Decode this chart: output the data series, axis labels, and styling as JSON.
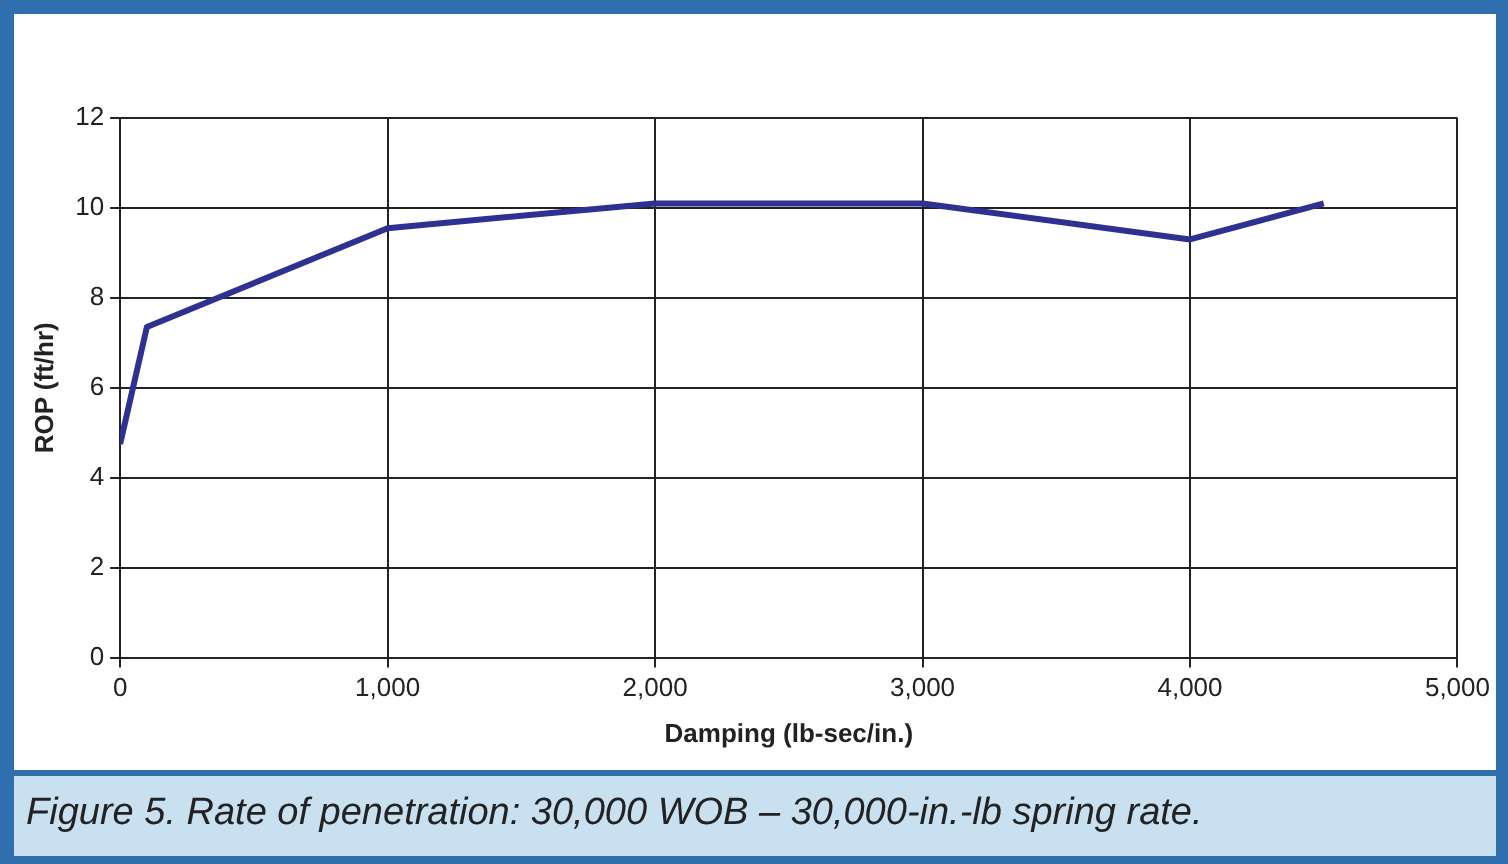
{
  "chart_data": {
    "type": "line",
    "xlabel": "Damping (lb-sec/in.)",
    "ylabel": "ROP (ft/hr)",
    "x": [
      0,
      100,
      1000,
      2000,
      3000,
      4000,
      4500
    ],
    "series": [
      {
        "color": "#2e3192",
        "values": [
          4.75,
          7.35,
          9.55,
          10.1,
          10.1,
          9.3,
          10.1
        ]
      }
    ],
    "xlim": [
      0,
      5000
    ],
    "xticks": [
      {
        "value": 0,
        "label": "0"
      },
      {
        "value": 1000,
        "label": "1,000"
      },
      {
        "value": 2000,
        "label": "2,000"
      },
      {
        "value": 3000,
        "label": "3,000"
      },
      {
        "value": 4000,
        "label": "4,000"
      },
      {
        "value": 5000,
        "label": "5,000"
      }
    ],
    "ylim": [
      0,
      12
    ],
    "yticks": [
      0,
      2,
      4,
      6,
      8,
      10,
      12
    ],
    "grid": true,
    "legend": false,
    "marker": "none",
    "line_style": "solid",
    "annotations": [
      "Figure 5. Rate of penetration: 30,000 WOB –  30,000-in.-lb spring rate."
    ]
  }
}
